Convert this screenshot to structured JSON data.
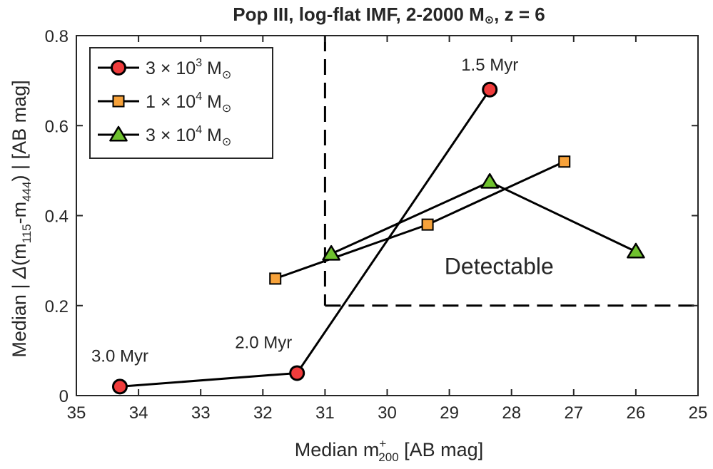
{
  "chart_data": {
    "type": "line",
    "title": {
      "prefix": "Pop  III,  log-flat  IMF,  2-2000  M",
      "sun": "⊙",
      "suffix": ",  z  =  6"
    },
    "xlabel": {
      "prefix": "Median  m",
      "sup": "+",
      "sub": "200",
      "suffix": "  [AB  mag]"
    },
    "ylabel": {
      "prefix": "Median | ",
      "delta": "Δ",
      "mid1": "(m",
      "sub1": "115",
      "mid2": "-m",
      "sub2": "444",
      "suffix": ") |  [AB  mag]"
    },
    "xlim": [
      35,
      25
    ],
    "ylim": [
      0,
      0.8
    ],
    "xticks": [
      35,
      34,
      33,
      32,
      31,
      30,
      29,
      28,
      27,
      26,
      25
    ],
    "yticks": [
      0,
      0.2,
      0.4,
      0.6,
      0.8
    ],
    "xtick_labels": [
      "35",
      "34",
      "33",
      "32",
      "31",
      "30",
      "29",
      "28",
      "27",
      "26",
      "25"
    ],
    "ytick_labels": [
      "0",
      "0.2",
      "0.4",
      "0.6",
      "0.8"
    ],
    "legend_position": "top-left",
    "series": [
      {
        "name": "3e3",
        "label_coef": "3 × 10",
        "label_exp": "3",
        "label_unit": "  M",
        "label_sun": "⊙",
        "marker": "circle",
        "color": "#f03c3c",
        "points": [
          {
            "x": 34.3,
            "y": 0.02
          },
          {
            "x": 31.45,
            "y": 0.05
          },
          {
            "x": 28.35,
            "y": 0.68
          }
        ]
      },
      {
        "name": "1e4",
        "label_coef": "1 × 10",
        "label_exp": "4",
        "label_unit": "  M",
        "label_sun": "⊙",
        "marker": "square",
        "color": "#f7a23a",
        "points": [
          {
            "x": 31.8,
            "y": 0.26
          },
          {
            "x": 29.35,
            "y": 0.38
          },
          {
            "x": 27.15,
            "y": 0.52
          }
        ]
      },
      {
        "name": "3e4",
        "label_coef": "3 × 10",
        "label_exp": "4",
        "label_unit": "  M",
        "label_sun": "⊙",
        "marker": "triangle",
        "color": "#6fc12e",
        "points": [
          {
            "x": 30.9,
            "y": 0.315
          },
          {
            "x": 28.35,
            "y": 0.475
          },
          {
            "x": 26.0,
            "y": 0.32
          }
        ]
      }
    ],
    "detection_limits": {
      "x": 31,
      "y": 0.2
    },
    "annotations": [
      {
        "text": "1.5 Myr",
        "x": 28.35,
        "y": 0.68
      },
      {
        "text": "2.0 Myr",
        "x": 31.45,
        "y": 0.05
      },
      {
        "text": "3.0 Myr",
        "x": 34.3,
        "y": 0.02
      },
      {
        "text": "Detectable",
        "x": 28.2,
        "y": 0.27
      }
    ]
  }
}
